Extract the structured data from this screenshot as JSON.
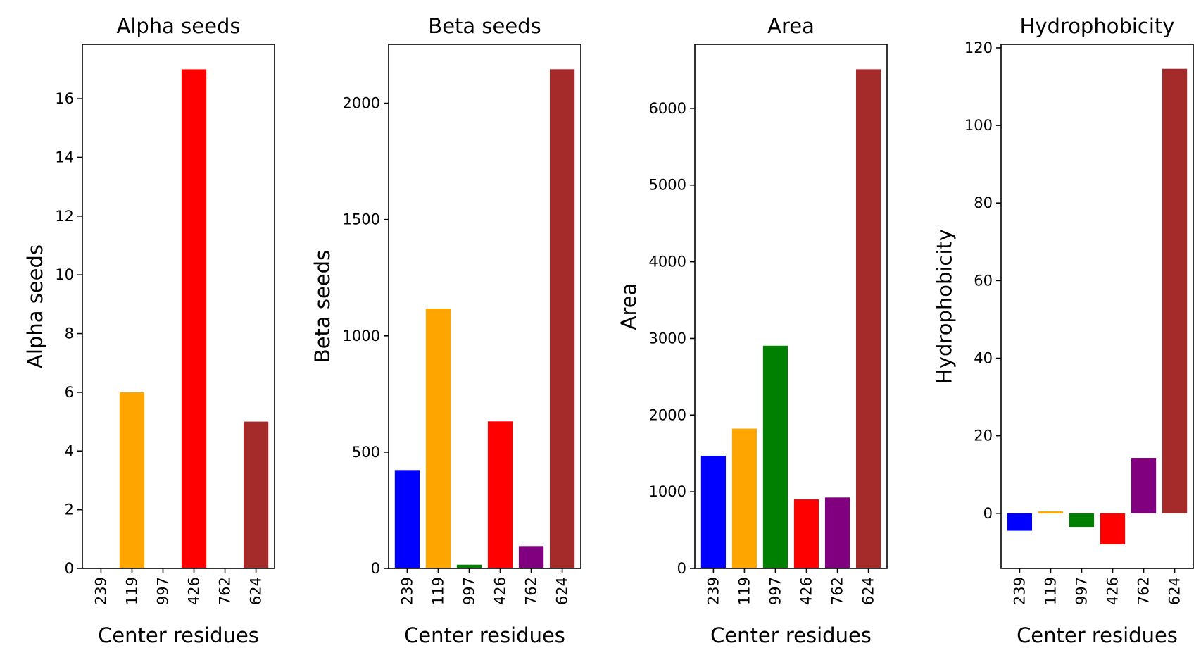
{
  "chart_data": [
    {
      "type": "bar",
      "title": "Alpha seeds",
      "xlabel": "Center residues",
      "ylabel": "Alpha seeds",
      "categories": [
        "239",
        "119",
        "997",
        "426",
        "762",
        "624"
      ],
      "values": [
        0,
        6,
        0,
        17,
        0,
        5
      ],
      "colors": [
        "#0000ff",
        "#ffa500",
        "#008000",
        "#ff0000",
        "#800080",
        "#a52a2a"
      ],
      "ylim": [
        0,
        17.85
      ],
      "yticks": [
        0,
        2,
        4,
        6,
        8,
        10,
        12,
        14,
        16
      ],
      "ytick_labels": [
        "0",
        "2",
        "4",
        "6",
        "8",
        "10",
        "12",
        "14",
        "16"
      ],
      "grid": false,
      "legend": "none"
    },
    {
      "type": "bar",
      "title": "Beta seeds",
      "xlabel": "Center residues",
      "ylabel": "Beta seeds",
      "categories": [
        "239",
        "119",
        "997",
        "426",
        "762",
        "624"
      ],
      "values": [
        423,
        1117,
        16,
        632,
        96,
        2146
      ],
      "colors": [
        "#0000ff",
        "#ffa500",
        "#008000",
        "#ff0000",
        "#800080",
        "#a52a2a"
      ],
      "ylim": [
        0,
        2253
      ],
      "yticks": [
        0,
        500,
        1000,
        1500,
        2000
      ],
      "ytick_labels": [
        "0",
        "500",
        "1000",
        "1500",
        "2000"
      ],
      "grid": false,
      "legend": "none"
    },
    {
      "type": "bar",
      "title": "Area",
      "xlabel": "Center residues",
      "ylabel": "Area",
      "categories": [
        "239",
        "119",
        "997",
        "426",
        "762",
        "624"
      ],
      "values": [
        1470,
        1823,
        2905,
        900,
        925,
        6510
      ],
      "colors": [
        "#0000ff",
        "#ffa500",
        "#008000",
        "#ff0000",
        "#800080",
        "#a52a2a"
      ],
      "ylim": [
        0,
        6835
      ],
      "yticks": [
        0,
        1000,
        2000,
        3000,
        4000,
        5000,
        6000
      ],
      "ytick_labels": [
        "0",
        "1000",
        "2000",
        "3000",
        "4000",
        "5000",
        "6000"
      ],
      "grid": false,
      "legend": "none"
    },
    {
      "type": "bar",
      "title": "Hydrophobicity",
      "xlabel": "Center residues",
      "ylabel": "Hydrophobicity",
      "categories": [
        "239",
        "119",
        "997",
        "426",
        "762",
        "624"
      ],
      "values": [
        -4.5,
        0.5,
        -3.5,
        -8.0,
        14.3,
        114.6
      ],
      "colors": [
        "#0000ff",
        "#ffa500",
        "#008000",
        "#ff0000",
        "#800080",
        "#a52a2a"
      ],
      "ylim": [
        -14.2,
        120.9
      ],
      "yticks": [
        0,
        20,
        40,
        60,
        80,
        100,
        120
      ],
      "ytick_labels": [
        "0",
        "20",
        "40",
        "60",
        "80",
        "100",
        "120"
      ],
      "grid": false,
      "legend": "none"
    }
  ]
}
